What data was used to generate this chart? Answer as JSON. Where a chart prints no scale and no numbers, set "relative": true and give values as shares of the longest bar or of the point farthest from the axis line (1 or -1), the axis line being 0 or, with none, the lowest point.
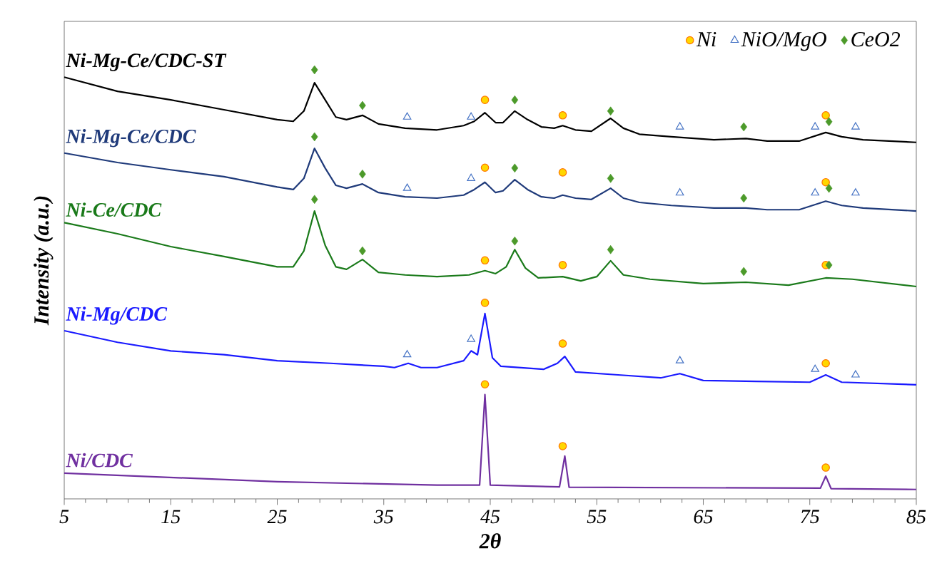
{
  "chart_data": {
    "type": "line",
    "relative": true,
    "xlabel": "2θ",
    "ylabel": "Intensity (a.u.)",
    "xlim": [
      5,
      85
    ],
    "xticks": [
      5,
      15,
      25,
      35,
      45,
      55,
      65,
      75,
      85
    ],
    "legend": "top right",
    "line_style": "solid",
    "series": [
      {
        "name": "Ni-Mg-Ce/CDC-ST",
        "color": "#000000",
        "x": [
          5,
          10,
          15,
          20,
          25,
          26.5,
          27.5,
          28.5,
          29.5,
          30.5,
          31.5,
          33,
          34.5,
          37,
          40,
          42.5,
          43.5,
          44.5,
          45.5,
          46.2,
          47.3,
          48.5,
          49.8,
          51,
          51.8,
          53,
          54.5,
          56.3,
          57.5,
          59,
          62,
          66,
          69,
          71,
          74,
          76.5,
          78,
          80,
          85
        ],
        "values": [
          0.983,
          0.95,
          0.93,
          0.907,
          0.884,
          0.88,
          0.904,
          0.97,
          0.93,
          0.89,
          0.884,
          0.894,
          0.874,
          0.864,
          0.86,
          0.87,
          0.88,
          0.9,
          0.877,
          0.877,
          0.904,
          0.884,
          0.867,
          0.864,
          0.87,
          0.86,
          0.857,
          0.887,
          0.864,
          0.85,
          0.844,
          0.837,
          0.84,
          0.834,
          0.834,
          0.854,
          0.844,
          0.837,
          0.831
        ]
      },
      {
        "name": "Ni-Mg-Ce/CDC",
        "color": "#1f3a7a",
        "x": [
          5,
          10,
          15,
          20,
          25,
          26.5,
          27.5,
          28.5,
          29.5,
          30.5,
          31.5,
          33,
          34.5,
          37,
          40,
          42.5,
          43.5,
          44.5,
          45.5,
          46.2,
          47.3,
          48.5,
          49.8,
          51,
          51.8,
          53,
          54.5,
          56.3,
          57.5,
          59,
          62,
          66,
          69,
          71,
          74,
          76.5,
          78,
          80,
          85
        ],
        "values": [
          0.806,
          0.784,
          0.767,
          0.751,
          0.727,
          0.721,
          0.747,
          0.817,
          0.771,
          0.731,
          0.724,
          0.734,
          0.714,
          0.704,
          0.701,
          0.708,
          0.721,
          0.738,
          0.714,
          0.718,
          0.744,
          0.721,
          0.704,
          0.701,
          0.708,
          0.701,
          0.698,
          0.724,
          0.701,
          0.691,
          0.684,
          0.678,
          0.678,
          0.674,
          0.674,
          0.694,
          0.684,
          0.678,
          0.671
        ]
      },
      {
        "name": "Ni-Ce/CDC",
        "color": "#1a7a1a",
        "x": [
          5,
          10,
          15,
          20,
          25,
          26.5,
          27.5,
          28.5,
          29.5,
          30.5,
          31.5,
          33,
          34.5,
          37,
          40,
          43,
          44.5,
          45.5,
          46.5,
          47.3,
          48.3,
          49.5,
          51.8,
          53.5,
          55,
          56.3,
          57.5,
          60,
          65,
          69,
          73,
          76.5,
          79,
          85
        ],
        "values": [
          0.644,
          0.618,
          0.588,
          0.565,
          0.541,
          0.541,
          0.578,
          0.671,
          0.591,
          0.541,
          0.535,
          0.558,
          0.528,
          0.522,
          0.518,
          0.522,
          0.532,
          0.525,
          0.541,
          0.581,
          0.538,
          0.515,
          0.518,
          0.508,
          0.518,
          0.555,
          0.522,
          0.512,
          0.502,
          0.505,
          0.498,
          0.515,
          0.512,
          0.495
        ]
      },
      {
        "name": "Ni-Mg/CDC",
        "color": "#1a1aff",
        "x": [
          5,
          10,
          15,
          20,
          25,
          30,
          35,
          36,
          37.3,
          38.5,
          40,
          42.5,
          43.2,
          43.8,
          44.5,
          45.2,
          46,
          50,
          51.3,
          52,
          53,
          57,
          61,
          62.8,
          65,
          70,
          75,
          76.5,
          78,
          85
        ],
        "values": [
          0.392,
          0.365,
          0.345,
          0.336,
          0.322,
          0.316,
          0.309,
          0.306,
          0.316,
          0.306,
          0.306,
          0.322,
          0.345,
          0.336,
          0.432,
          0.329,
          0.309,
          0.302,
          0.316,
          0.332,
          0.296,
          0.289,
          0.282,
          0.292,
          0.276,
          0.274,
          0.272,
          0.289,
          0.272,
          0.266
        ]
      },
      {
        "name": "Ni/CDC",
        "color": "#7030a0",
        "x": [
          5,
          25,
          40,
          44,
          44.5,
          45,
          51.5,
          52,
          52.4,
          76,
          76.5,
          77,
          85
        ],
        "values": [
          0.06,
          0.04,
          0.032,
          0.032,
          0.243,
          0.032,
          0.028,
          0.1,
          0.027,
          0.025,
          0.053,
          0.024,
          0.022
        ]
      },
      {
        "name": "Ni",
        "type": "scatter",
        "marker": "circle",
        "color": "#ffd700",
        "x": [
          44.5,
          51.8,
          76.5,
          44.5,
          51.8,
          76.5,
          44.5,
          51.8,
          76.5,
          44.5,
          51.8,
          76.5,
          44.5,
          51.8,
          76.5
        ],
        "values": [
          0.93,
          0.894,
          0.894,
          0.772,
          0.761,
          0.738,
          0.556,
          0.545,
          0.545,
          0.457,
          0.362,
          0.316,
          0.267,
          0.123,
          0.073
        ]
      },
      {
        "name": "NiO/MgO",
        "type": "scatter",
        "marker": "triangle",
        "color": "#4472c4",
        "x": [
          37.2,
          43.2,
          62.8,
          75.5,
          79.3,
          37.2,
          43.2,
          62.8,
          75.5,
          79.3,
          37.2,
          43.2,
          62.8,
          75.5,
          79.3
        ],
        "values": [
          0.89,
          0.89,
          0.867,
          0.867,
          0.867,
          0.724,
          0.747,
          0.713,
          0.713,
          0.713,
          0.336,
          0.372,
          0.322,
          0.302,
          0.289
        ]
      },
      {
        "name": "CeO2",
        "type": "scatter",
        "marker": "diamond",
        "color": "#4c9a2a",
        "x": [
          28.5,
          33,
          47.3,
          56.3,
          68.8,
          76.8,
          28.5,
          33,
          47.3,
          56.3,
          68.8,
          76.8,
          28.5,
          33,
          47.3,
          56.3,
          68.8,
          76.8
        ],
        "values": [
          1.0,
          0.917,
          0.93,
          0.904,
          0.867,
          0.879,
          0.844,
          0.757,
          0.771,
          0.747,
          0.701,
          0.724,
          0.698,
          0.578,
          0.601,
          0.581,
          0.53,
          0.545
        ]
      }
    ]
  }
}
